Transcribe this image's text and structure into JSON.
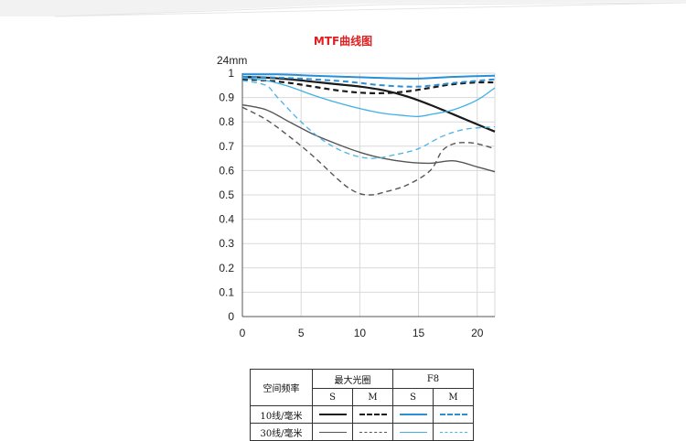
{
  "chart_data": {
    "type": "line",
    "title": "MTF曲线图",
    "ylabel": "24mm",
    "xlabel": "",
    "xlim": [
      0,
      21.5
    ],
    "ylim": [
      0,
      1
    ],
    "xticks": [
      "0",
      "5",
      "10",
      "15",
      "20"
    ],
    "yticks": [
      "0",
      "0.1",
      "0.2",
      "0.3",
      "0.4",
      "0.5",
      "0.6",
      "0.7",
      "0.8",
      "0.9",
      "1"
    ],
    "grid": true,
    "series": [
      {
        "name": "最大光圈 S 10线/毫米",
        "color": "#1a1a1a",
        "dash": false,
        "width": 2.2,
        "x": [
          0,
          2,
          4,
          6,
          8,
          10,
          12,
          14,
          16,
          18,
          20,
          21.5
        ],
        "y": [
          0.985,
          0.982,
          0.975,
          0.965,
          0.955,
          0.945,
          0.93,
          0.905,
          0.87,
          0.83,
          0.79,
          0.76
        ]
      },
      {
        "name": "最大光圈 M 10线/毫米",
        "color": "#1a1a1a",
        "dash": true,
        "width": 2.2,
        "x": [
          0,
          2,
          4,
          6,
          8,
          10,
          12,
          14,
          16,
          18,
          20,
          21.5
        ],
        "y": [
          0.975,
          0.97,
          0.96,
          0.945,
          0.93,
          0.92,
          0.918,
          0.925,
          0.94,
          0.955,
          0.962,
          0.962
        ]
      },
      {
        "name": "最大光圈 S 30线/毫米",
        "color": "#555555",
        "dash": false,
        "width": 1.4,
        "x": [
          0,
          2,
          4,
          6,
          8,
          10,
          12,
          14,
          16,
          18,
          20,
          21.5
        ],
        "y": [
          0.87,
          0.85,
          0.8,
          0.75,
          0.71,
          0.675,
          0.65,
          0.635,
          0.63,
          0.64,
          0.615,
          0.595
        ]
      },
      {
        "name": "最大光圈 M 30线/毫米",
        "color": "#555555",
        "dash": true,
        "width": 1.4,
        "x": [
          0,
          2,
          4,
          6,
          8,
          9,
          10,
          11,
          12,
          14,
          16,
          17,
          18,
          19,
          20,
          21.5
        ],
        "y": [
          0.86,
          0.81,
          0.74,
          0.66,
          0.57,
          0.53,
          0.505,
          0.5,
          0.51,
          0.54,
          0.6,
          0.68,
          0.71,
          0.715,
          0.71,
          0.69
        ]
      },
      {
        "name": "F8 S 10线/毫米",
        "color": "#2a8fd6",
        "dash": false,
        "width": 2.0,
        "x": [
          0,
          3,
          6,
          9,
          12,
          15,
          18,
          21.5
        ],
        "y": [
          0.995,
          0.995,
          0.99,
          0.985,
          0.98,
          0.978,
          0.985,
          0.99
        ]
      },
      {
        "name": "F8 M 10线/毫米",
        "color": "#2a8fd6",
        "dash": true,
        "width": 2.0,
        "x": [
          0,
          3,
          6,
          9,
          12,
          15,
          18,
          21.5
        ],
        "y": [
          0.985,
          0.982,
          0.975,
          0.965,
          0.95,
          0.945,
          0.96,
          0.975
        ]
      },
      {
        "name": "F8 S 30线/毫米",
        "color": "#3fb0e6",
        "dash": false,
        "width": 1.3,
        "x": [
          0,
          2,
          4,
          6,
          8,
          10,
          12,
          14,
          15,
          16,
          18,
          20,
          21.5
        ],
        "y": [
          0.98,
          0.97,
          0.945,
          0.91,
          0.88,
          0.855,
          0.835,
          0.825,
          0.822,
          0.83,
          0.85,
          0.89,
          0.94
        ]
      },
      {
        "name": "F8 M 30线/毫米",
        "color": "#4ab3e8",
        "dash": true,
        "width": 1.3,
        "x": [
          0,
          2,
          3,
          5,
          7,
          9,
          11,
          13,
          15,
          17,
          19,
          21.5
        ],
        "y": [
          0.97,
          0.95,
          0.9,
          0.8,
          0.72,
          0.67,
          0.65,
          0.665,
          0.69,
          0.74,
          0.77,
          0.78
        ]
      }
    ]
  },
  "legend_table": {
    "row_header": "空间频率",
    "group_open": "最大光圈",
    "group_f8": "F8",
    "sub_s": "S",
    "sub_m": "M",
    "row_10": "10线/毫米",
    "row_30": "30线/毫米"
  },
  "colors": {
    "dark": "#1a1a1a",
    "blue": "#2a8fd6",
    "title": "#e02020"
  }
}
